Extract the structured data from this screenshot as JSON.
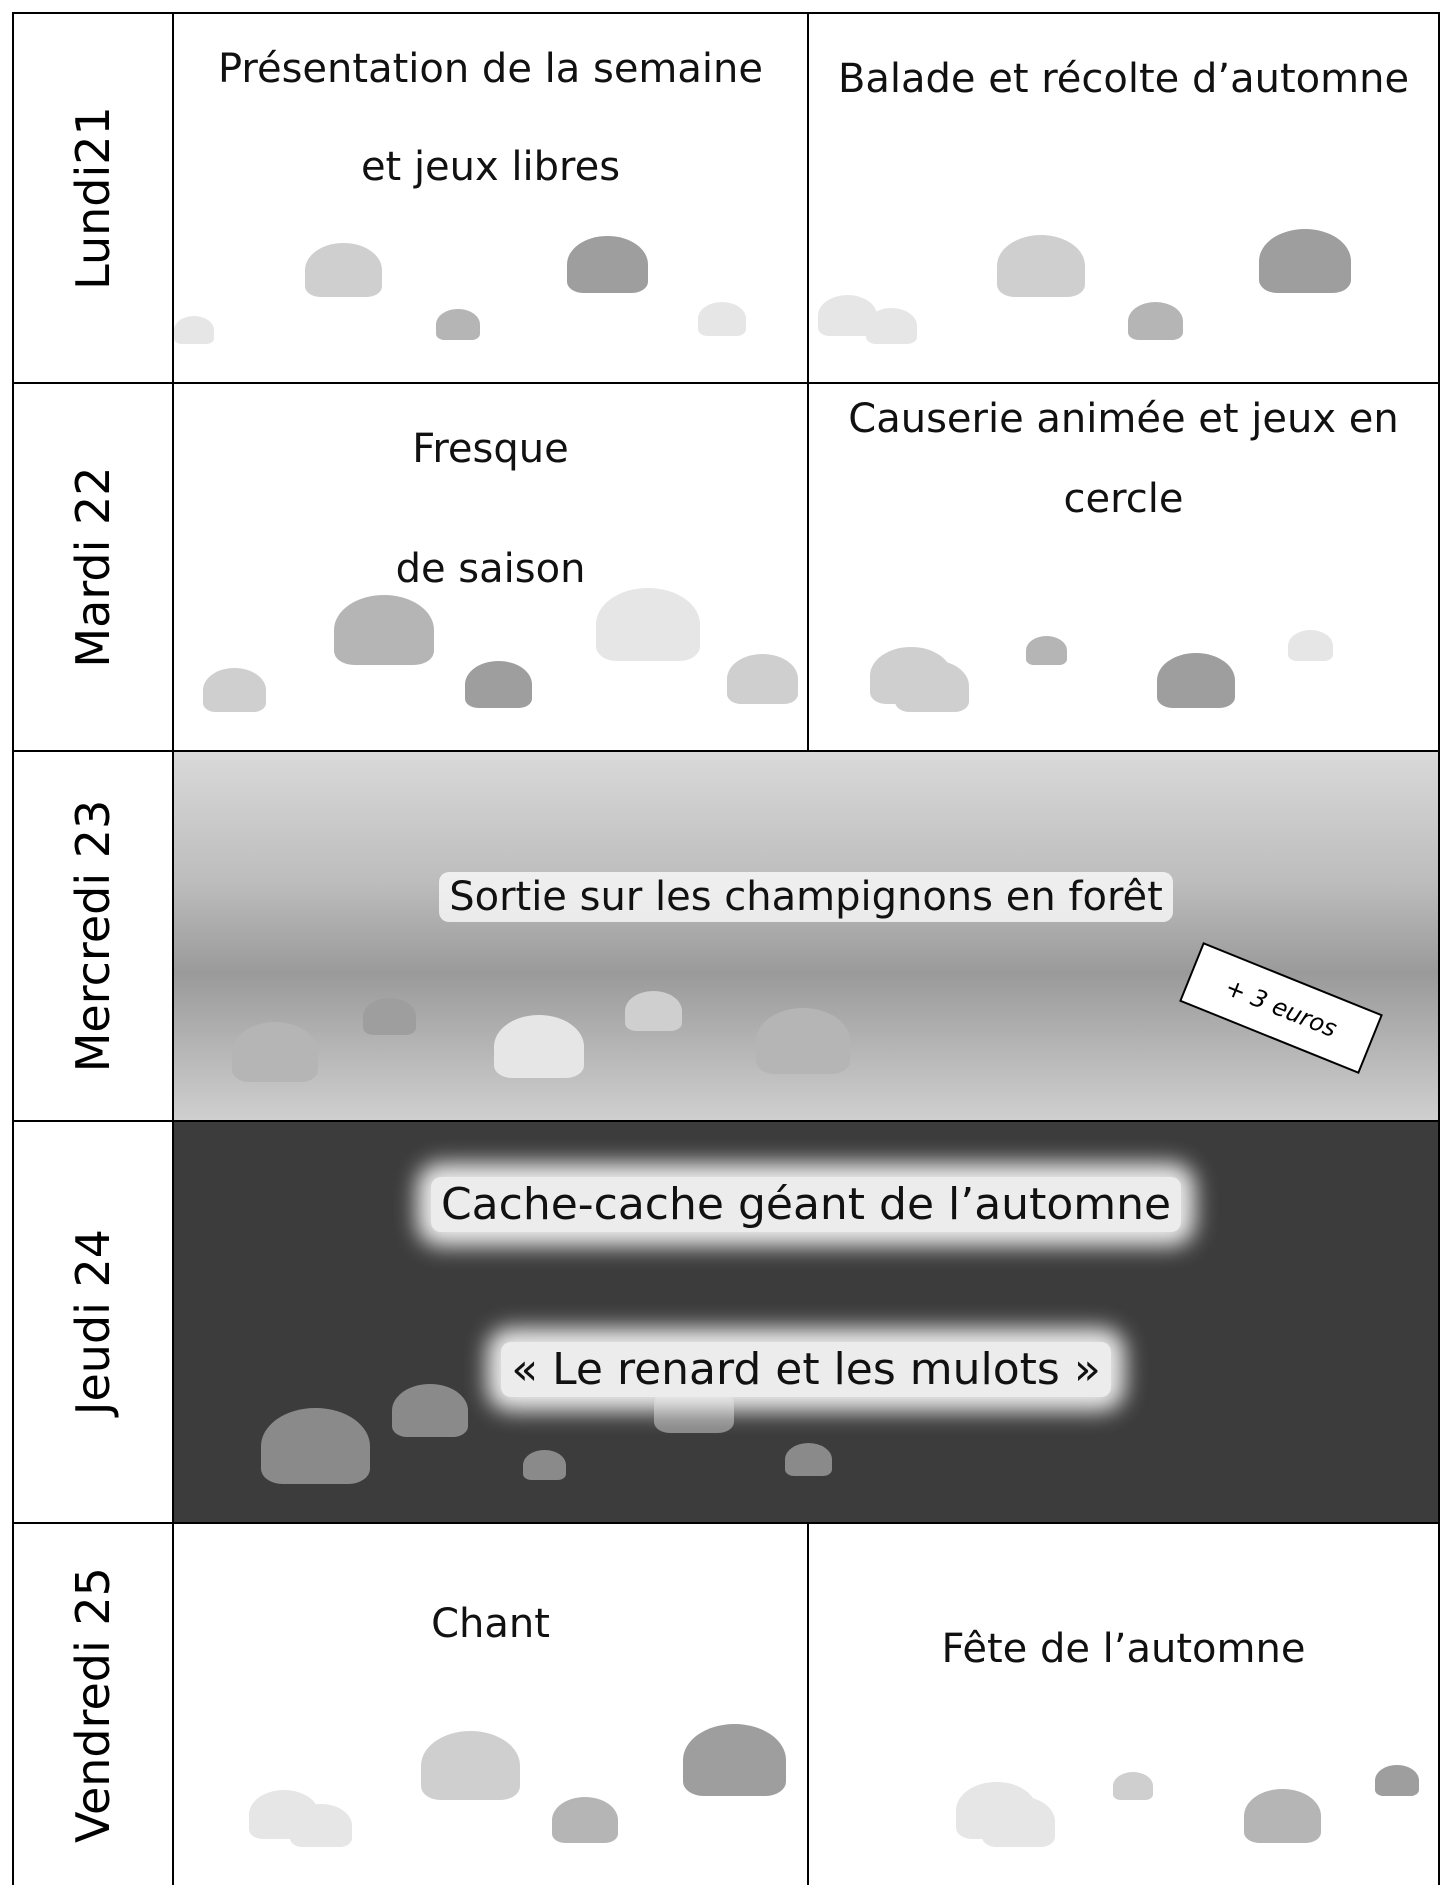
{
  "schedule": {
    "rows": [
      {
        "day": "Lundi21",
        "activities": [
          {
            "lines": [
              "Présentation de la semaine",
              "et jeux libres"
            ]
          },
          {
            "lines": [
              "Balade et récolte d’automne"
            ]
          }
        ]
      },
      {
        "day": "Mardi 22",
        "activities": [
          {
            "lines": [
              "Fresque",
              "de saison"
            ]
          },
          {
            "lines": [
              "Causerie animée et jeux en",
              "cercle"
            ]
          }
        ]
      },
      {
        "day": "Mercredi 23",
        "activities": [
          {
            "lines": [
              "Sortie sur les champignons en forêt"
            ],
            "note": "+ 3 euros"
          }
        ]
      },
      {
        "day": "Jeudi 24",
        "activities": [
          {
            "lines": [
              "Cache-cache géant de l’automne",
              "« Le renard et les mulots »"
            ]
          }
        ]
      },
      {
        "day": "Vendredi 25",
        "activities": [
          {
            "lines": [
              "Chant"
            ]
          },
          {
            "lines": [
              "Fête de l’automne"
            ]
          }
        ]
      }
    ]
  }
}
